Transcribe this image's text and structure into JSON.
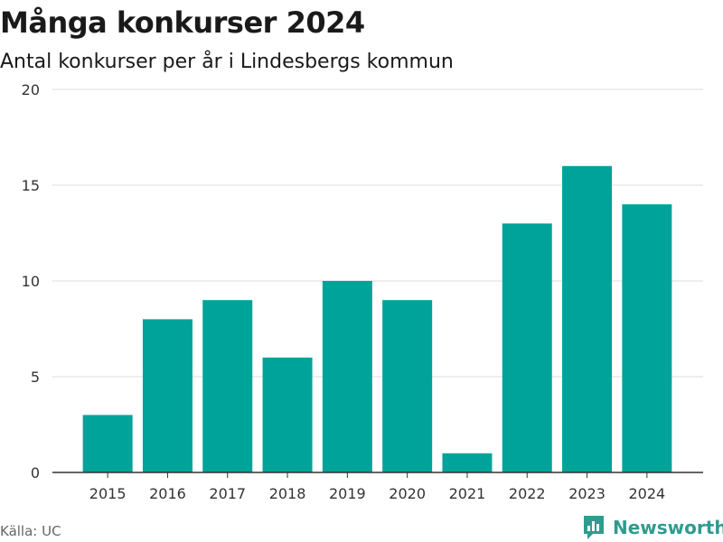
{
  "header": {
    "title": "Många konkurser 2024",
    "subtitle": "Antal konkurser per år i Lindesbergs kommun"
  },
  "footer": {
    "source": "Källa: UC",
    "brand": "Newsworthy",
    "brand_color": "#2e9c8f"
  },
  "chart_data": {
    "type": "bar",
    "title": "Många konkurser 2024",
    "subtitle": "Antal konkurser per år i Lindesbergs kommun",
    "xlabel": "",
    "ylabel": "",
    "categories": [
      "2015",
      "2016",
      "2017",
      "2018",
      "2019",
      "2020",
      "2021",
      "2022",
      "2023",
      "2024"
    ],
    "values": [
      3,
      8,
      9,
      6,
      10,
      9,
      1,
      13,
      16,
      14
    ],
    "ylim": [
      0,
      20
    ],
    "yticks": [
      0,
      5,
      10,
      15,
      20
    ],
    "grid": true,
    "legend": "none",
    "bar_color": "#00a39a"
  }
}
